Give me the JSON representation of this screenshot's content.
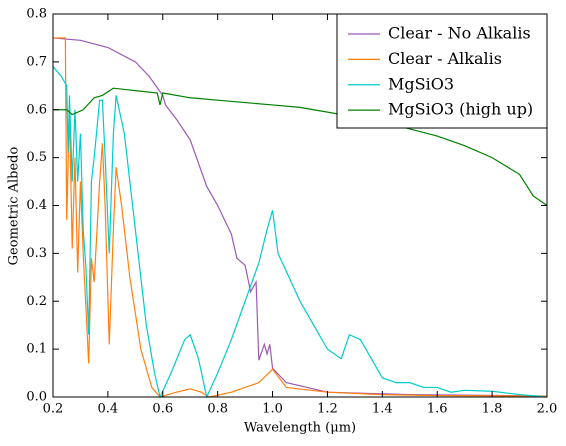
{
  "chart_data": {
    "type": "line",
    "xlabel": "Wavelength (μm)",
    "ylabel": "Geometric Albedo",
    "xlim": [
      0.2,
      2.0
    ],
    "ylim": [
      0,
      0.8
    ],
    "xticks": [
      0.2,
      0.4,
      0.6,
      0.8,
      {
        "value": 1,
        "label": "1.0"
      },
      1.2,
      1.4,
      1.6,
      1.8,
      {
        "value": 2,
        "label": "2.0"
      }
    ],
    "yticks": [
      {
        "value": 0,
        "label": "0.0"
      },
      0.1,
      0.2,
      0.3,
      0.4,
      0.5,
      0.6,
      0.7,
      0.8
    ],
    "legend": "upper right",
    "series": [
      {
        "name": "Clear - No Alkalis",
        "color": "#9b59b6",
        "x": [
          0.2,
          0.3,
          0.4,
          0.5,
          0.55,
          0.6,
          0.61,
          0.65,
          0.7,
          0.76,
          0.8,
          0.85,
          0.87,
          0.9,
          0.92,
          0.94,
          0.95,
          0.97,
          0.98,
          0.99,
          1.0,
          1.05,
          1.2,
          1.5,
          2.0
        ],
        "values": [
          0.75,
          0.745,
          0.73,
          0.7,
          0.67,
          0.63,
          0.61,
          0.58,
          0.537,
          0.44,
          0.4,
          0.34,
          0.29,
          0.275,
          0.22,
          0.24,
          0.077,
          0.11,
          0.09,
          0.11,
          0.06,
          0.03,
          0.01,
          0.005,
          0.002
        ]
      },
      {
        "name": "Clear - Alkalis",
        "color": "#ff7f0e",
        "x": [
          0.2,
          0.245,
          0.25,
          0.26,
          0.27,
          0.28,
          0.29,
          0.3,
          0.31,
          0.33,
          0.34,
          0.35,
          0.37,
          0.38,
          0.39,
          0.405,
          0.42,
          0.43,
          0.45,
          0.48,
          0.52,
          0.56,
          0.59,
          0.65,
          0.7,
          0.74,
          0.77,
          0.85,
          0.95,
          1.0,
          1.05,
          1.2,
          1.4,
          1.6,
          2.0
        ],
        "values": [
          0.75,
          0.75,
          0.37,
          0.6,
          0.31,
          0.5,
          0.26,
          0.45,
          0.3,
          0.07,
          0.29,
          0.24,
          0.45,
          0.53,
          0.4,
          0.11,
          0.35,
          0.48,
          0.4,
          0.25,
          0.1,
          0.02,
          0,
          0.01,
          0.017,
          0.01,
          0,
          0.01,
          0.03,
          0.058,
          0.02,
          0.01,
          0.005,
          0.003,
          0.002
        ]
      },
      {
        "name": "MgSiO3",
        "color": "#00cccc",
        "x": [
          0.2,
          0.23,
          0.25,
          0.255,
          0.26,
          0.27,
          0.28,
          0.29,
          0.3,
          0.31,
          0.32,
          0.33,
          0.34,
          0.35,
          0.37,
          0.38,
          0.39,
          0.405,
          0.42,
          0.43,
          0.46,
          0.5,
          0.54,
          0.57,
          0.59,
          0.63,
          0.68,
          0.7,
          0.73,
          0.76,
          0.8,
          0.85,
          0.9,
          0.95,
          0.98,
          1.0,
          1.02,
          1.06,
          1.1,
          1.15,
          1.2,
          1.25,
          1.28,
          1.32,
          1.35,
          1.4,
          1.45,
          1.5,
          1.55,
          1.6,
          1.65,
          1.7,
          1.8,
          1.9,
          2.0
        ],
        "values": [
          0.69,
          0.67,
          0.65,
          0.51,
          0.63,
          0.45,
          0.6,
          0.45,
          0.55,
          0.35,
          0.27,
          0.13,
          0.45,
          0.5,
          0.62,
          0.62,
          0.5,
          0.3,
          0.55,
          0.63,
          0.55,
          0.35,
          0.15,
          0.05,
          0,
          0.05,
          0.12,
          0.13,
          0.08,
          0,
          0.05,
          0.12,
          0.2,
          0.28,
          0.35,
          0.39,
          0.3,
          0.25,
          0.2,
          0.15,
          0.1,
          0.08,
          0.13,
          0.12,
          0.09,
          0.04,
          0.03,
          0.03,
          0.02,
          0.02,
          0.01,
          0.014,
          0.012,
          0.005,
          0
        ]
      },
      {
        "name": "MgSiO3 (high up)",
        "color": "#008000",
        "x": [
          0.2,
          0.25,
          0.27,
          0.31,
          0.35,
          0.38,
          0.42,
          0.5,
          0.58,
          0.59,
          0.6,
          0.7,
          0.8,
          0.9,
          1.0,
          1.1,
          1.2,
          1.3,
          1.4,
          1.5,
          1.6,
          1.7,
          1.8,
          1.9,
          1.95,
          2.0
        ],
        "values": [
          0.6,
          0.6,
          0.59,
          0.6,
          0.625,
          0.63,
          0.645,
          0.64,
          0.635,
          0.61,
          0.635,
          0.625,
          0.62,
          0.615,
          0.61,
          0.605,
          0.595,
          0.585,
          0.575,
          0.56,
          0.545,
          0.525,
          0.5,
          0.465,
          0.42,
          0.4
        ]
      }
    ]
  }
}
